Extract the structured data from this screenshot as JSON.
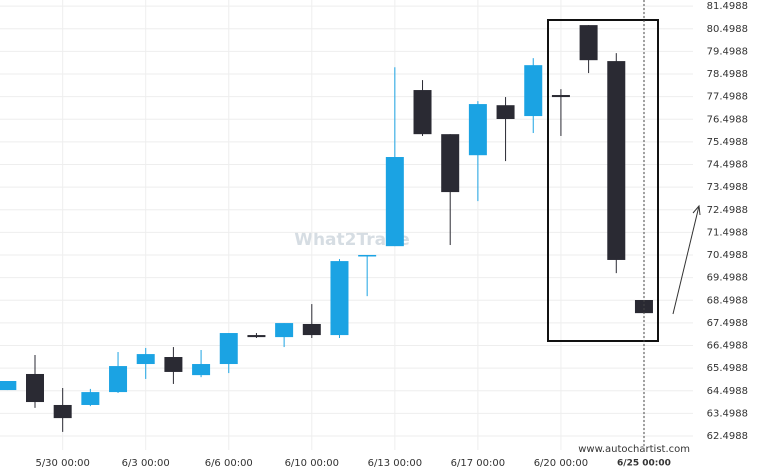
{
  "chart_data": {
    "type": "candlestick",
    "categories": [
      null,
      null,
      "5/30 00:00",
      null,
      null,
      "6/3 00:00",
      null,
      null,
      "6/6 00:00",
      null,
      null,
      "6/10 00:00",
      null,
      null,
      "6/13 00:00",
      null,
      null,
      "6/17 00:00",
      null,
      null,
      "6/20 00:00",
      null,
      null,
      "6/25 00:00"
    ],
    "open": [
      64.53,
      65.24,
      63.87,
      63.87,
      64.44,
      65.68,
      65.99,
      65.19,
      65.68,
      66.96,
      66.87,
      67.45,
      66.96,
      70.45,
      70.89,
      77.79,
      75.84,
      74.91,
      77.12,
      76.64,
      77.57,
      80.66,
      79.07,
      68.51
    ],
    "high": [
      64.93,
      66.08,
      64.62,
      64.58,
      66.21,
      66.39,
      66.43,
      66.3,
      67.05,
      67.05,
      67.49,
      68.33,
      70.32,
      70.5,
      78.8,
      78.23,
      75.84,
      77.3,
      77.48,
      79.2,
      77.83,
      80.66,
      79.42,
      68.51
    ],
    "low": [
      64.53,
      63.74,
      62.68,
      63.82,
      64.4,
      65.02,
      64.8,
      65.1,
      65.28,
      66.83,
      66.43,
      66.83,
      66.83,
      68.68,
      70.89,
      75.76,
      70.94,
      72.88,
      74.65,
      75.89,
      75.76,
      78.54,
      69.7,
      67.93
    ],
    "close": [
      64.93,
      64.0,
      63.29,
      64.44,
      65.59,
      66.12,
      65.33,
      65.68,
      67.05,
      66.87,
      67.49,
      66.96,
      70.23,
      70.5,
      74.83,
      75.84,
      73.28,
      77.17,
      76.51,
      78.89,
      77.48,
      79.11,
      70.28,
      67.93
    ],
    "up_color": "#1ba3e3",
    "down_color": "#2a2a33",
    "ylim": [
      61.88,
      81.77
    ],
    "yticks": [
      62.4988,
      63.4988,
      64.4988,
      65.4988,
      66.4988,
      67.4988,
      68.4988,
      69.4988,
      70.4988,
      71.4988,
      72.4988,
      73.4988,
      74.4988,
      75.4988,
      76.4988,
      77.4988,
      78.4988,
      79.4988,
      80.4988,
      81.4988
    ],
    "grid": true,
    "watermark": "What2Trade",
    "source": "www.autochartist.com"
  }
}
